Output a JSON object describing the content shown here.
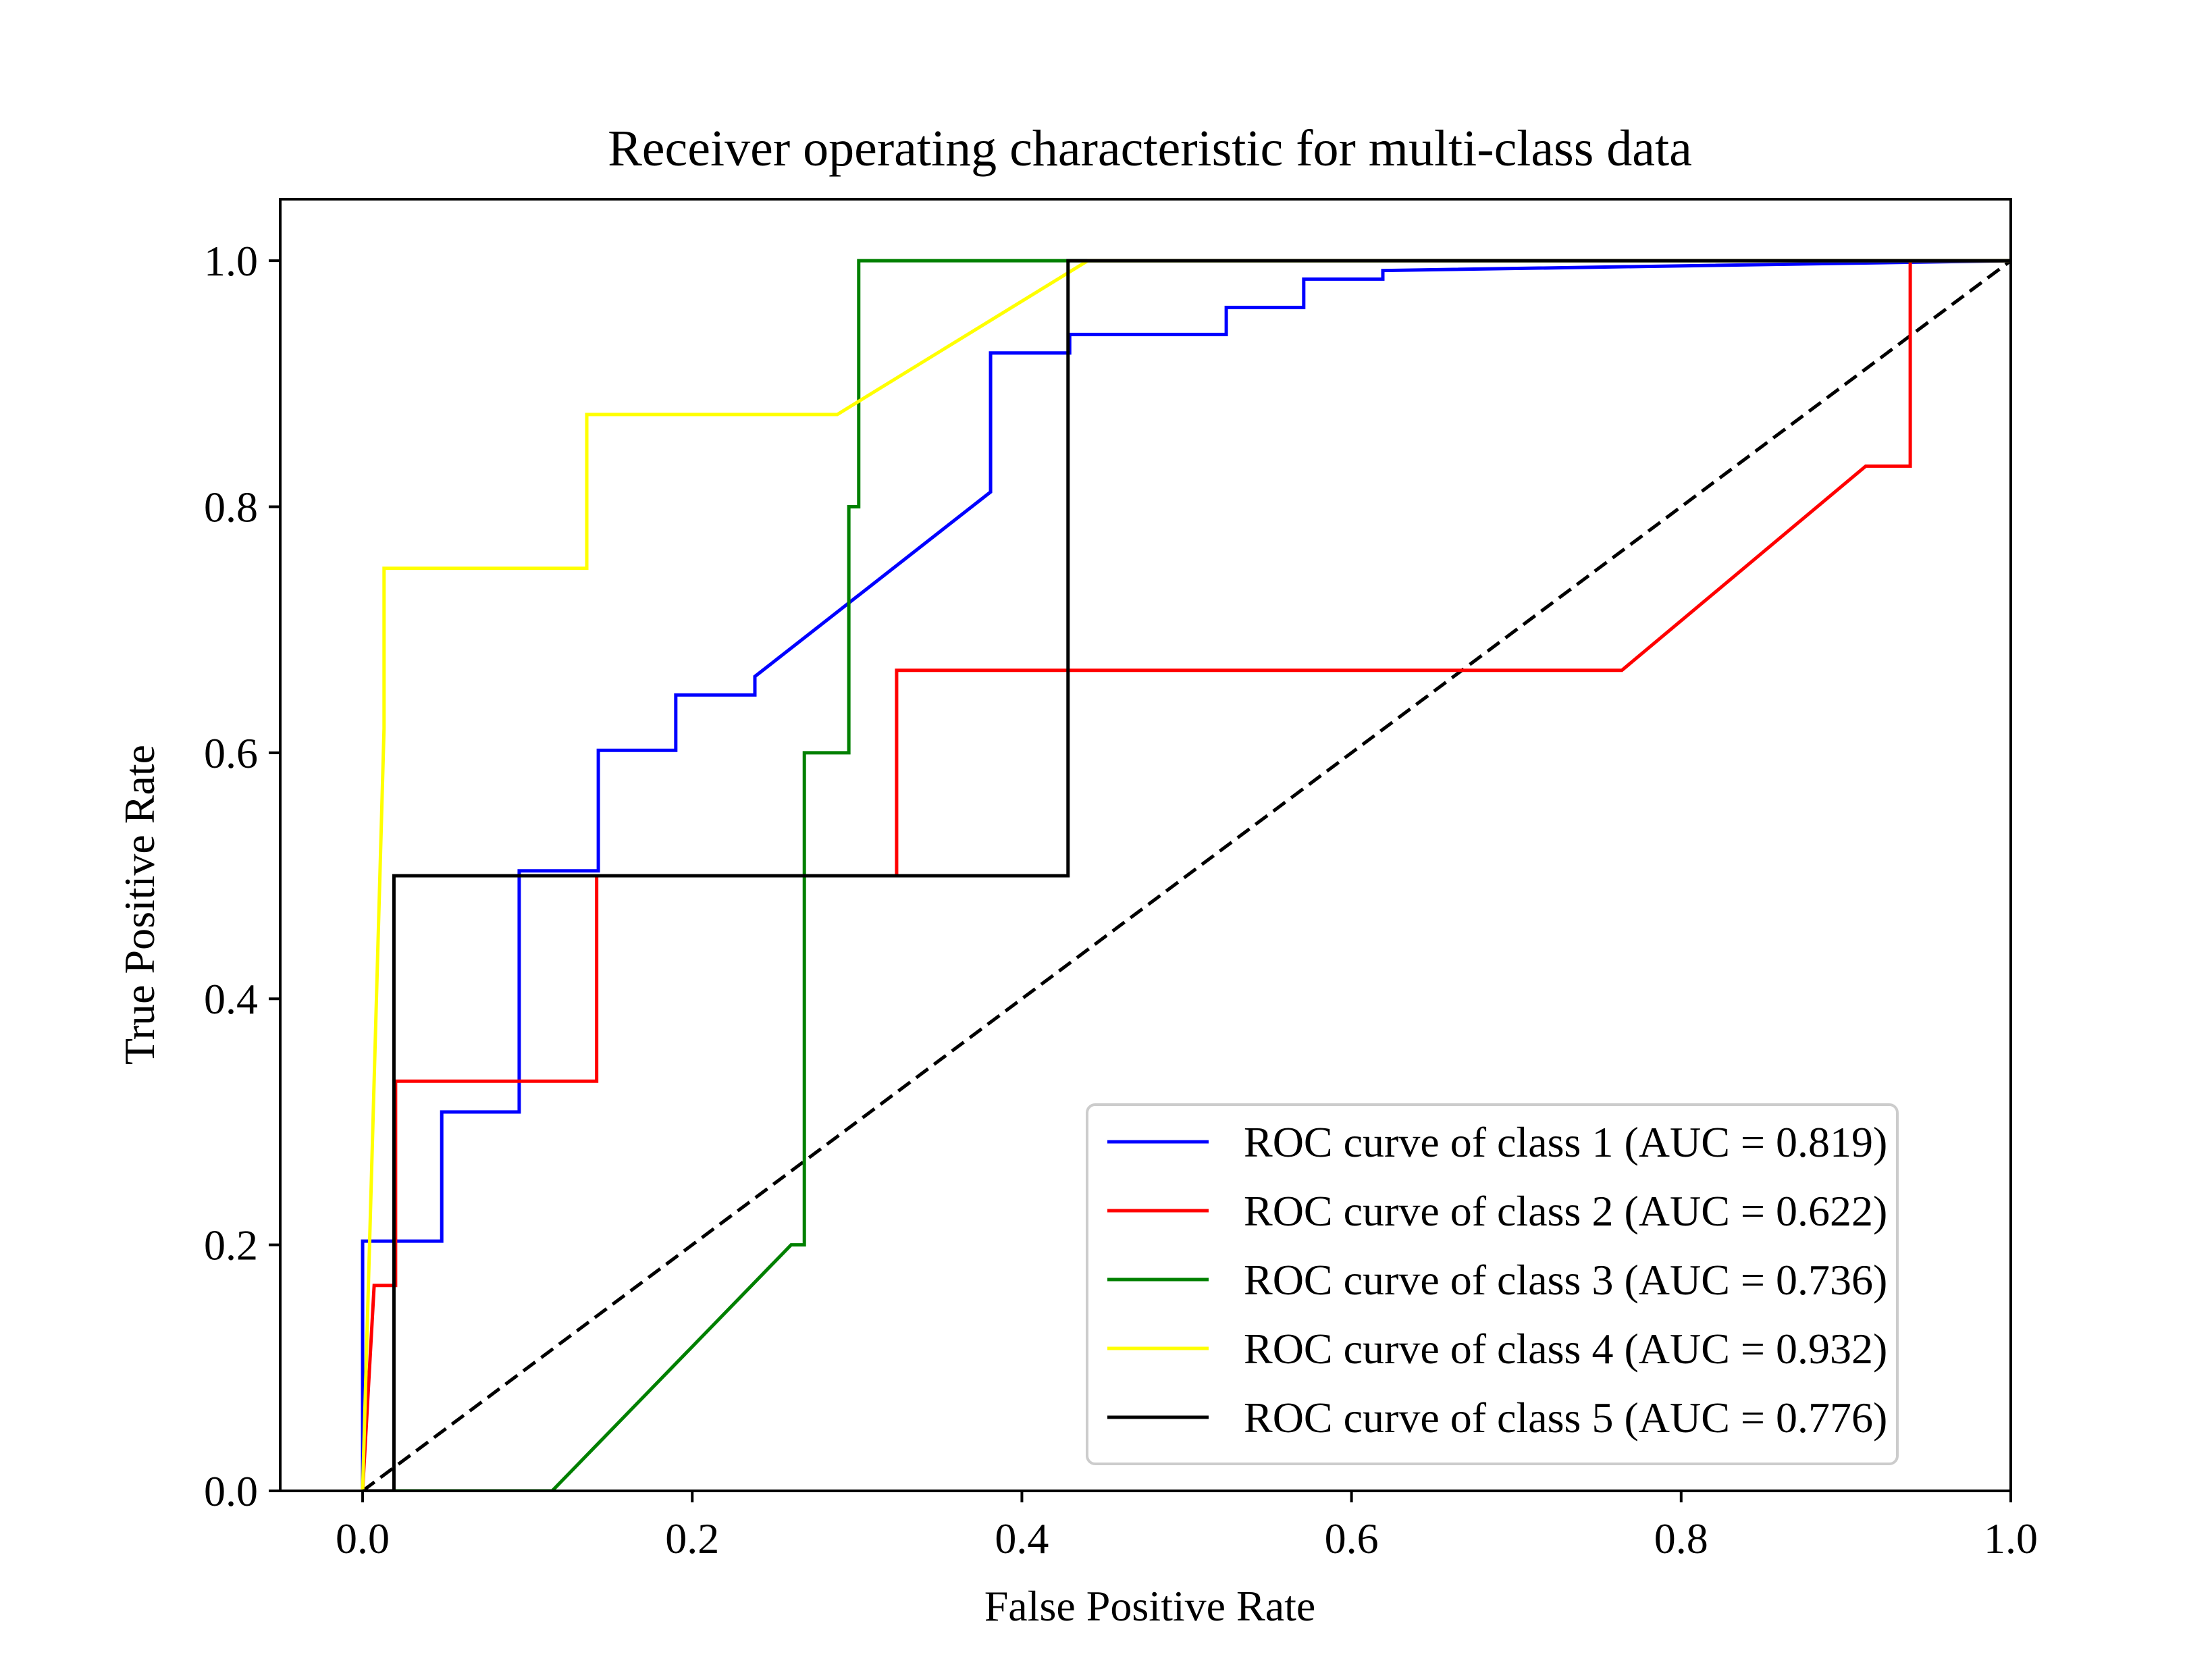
{
  "chart_data": {
    "type": "line",
    "title": "Receiver operating characteristic for multi-class data",
    "xlabel": "False Positive Rate",
    "ylabel": "True Positive Rate",
    "xlim": [
      -0.05,
      1.0
    ],
    "ylim": [
      0.0,
      1.05
    ],
    "xticks": [
      "0.0",
      "0.2",
      "0.4",
      "0.6",
      "0.8",
      "1.0"
    ],
    "yticks": [
      "0.0",
      "0.2",
      "0.4",
      "0.6",
      "0.8",
      "1.0"
    ],
    "grid": false,
    "legend_position": "lower-right",
    "series": [
      {
        "name": "ROC curve of class 1 (AUC = 0.819)",
        "color": "#0000ff",
        "x": [
          0.0,
          0.0,
          0.048,
          0.048,
          0.095,
          0.095,
          0.143,
          0.143,
          0.19,
          0.19,
          0.238,
          0.238,
          0.381,
          0.381,
          0.429,
          0.429,
          0.524,
          0.524,
          0.571,
          0.571,
          0.619,
          0.619,
          1.0
        ],
        "y": [
          0.0,
          0.203,
          0.203,
          0.308,
          0.308,
          0.504,
          0.504,
          0.602,
          0.602,
          0.647,
          0.647,
          0.662,
          0.812,
          0.925,
          0.925,
          0.94,
          0.94,
          0.962,
          0.962,
          0.985,
          0.985,
          0.992,
          1.0
        ]
      },
      {
        "name": "ROC curve of class 2 (AUC = 0.622)",
        "color": "#ff0000",
        "x": [
          0.0,
          0.007,
          0.007,
          0.02,
          0.02,
          0.142,
          0.142,
          0.324,
          0.324,
          0.764,
          0.912,
          0.939,
          0.939,
          1.0
        ],
        "y": [
          0.0,
          0.167,
          0.167,
          0.167,
          0.333,
          0.333,
          0.5,
          0.5,
          0.667,
          0.667,
          0.833,
          0.833,
          1.0,
          1.0
        ]
      },
      {
        "name": "ROC curve of class 3 (AUC = 0.736)",
        "color": "#008000",
        "x": [
          0.0,
          0.115,
          0.26,
          0.268,
          0.268,
          0.295,
          0.295,
          0.301,
          0.301,
          1.0
        ],
        "y": [
          0.0,
          0.0,
          0.2,
          0.2,
          0.6,
          0.6,
          0.8,
          0.8,
          1.0,
          1.0
        ]
      },
      {
        "name": "ROC curve of class 4 (AUC = 0.932)",
        "color": "#ffff00",
        "x": [
          0.0,
          0.013,
          0.013,
          0.136,
          0.136,
          0.288,
          0.44,
          1.0
        ],
        "y": [
          0.0,
          0.62,
          0.75,
          0.75,
          0.875,
          0.875,
          1.0,
          1.0
        ]
      },
      {
        "name": "ROC curve of class 5 (AUC = 0.776)",
        "color": "#000000",
        "x": [
          0.0,
          0.019,
          0.019,
          0.428,
          0.428,
          1.0
        ],
        "y": [
          0.0,
          0.0,
          0.5,
          0.5,
          1.0,
          1.0
        ]
      }
    ],
    "reference_line": {
      "x": [
        0.0,
        1.0
      ],
      "y": [
        0.0,
        1.0
      ],
      "color": "#000000",
      "style": "dashed"
    }
  }
}
